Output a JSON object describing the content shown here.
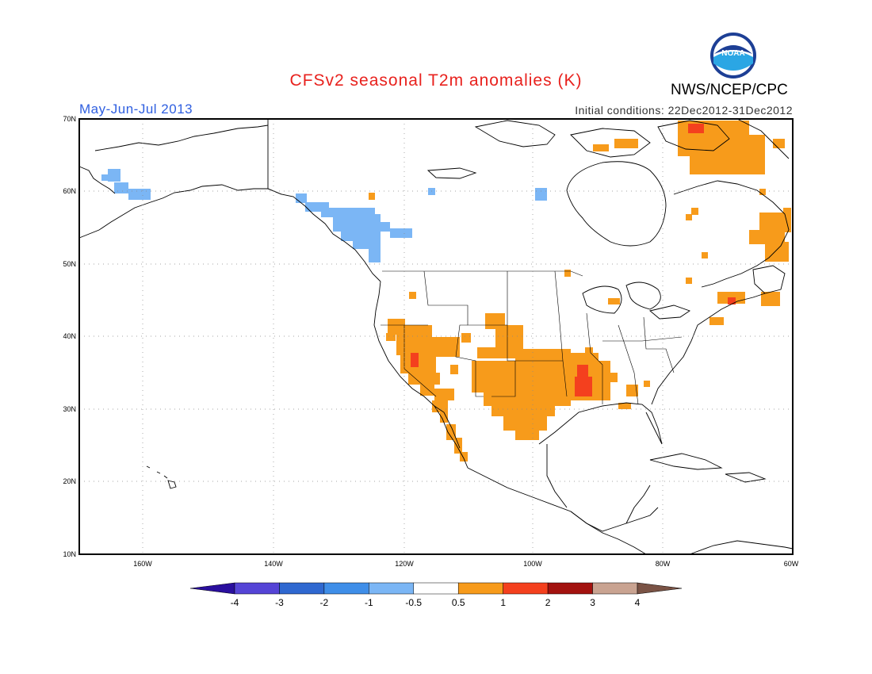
{
  "header": {
    "title": "CFSv2 seasonal T2m anomalies (K)",
    "period": "May-Jun-Jul 2013",
    "initial_conditions": "Initial conditions: 22Dec2012-31Dec2012",
    "agency": "NWS/NCEP/CPC",
    "logo_text": "NOAA"
  },
  "map": {
    "lat_range": [
      10,
      70
    ],
    "lon_range": [
      -172,
      -60
    ],
    "lat_ticks": [
      "70N",
      "60N",
      "50N",
      "40N",
      "30N",
      "20N",
      "10N"
    ],
    "lon_ticks": [
      "160W",
      "140W",
      "120W",
      "100W",
      "80W",
      "60W"
    ],
    "grid": true,
    "anomaly_regions": [
      {
        "name": "southwest-us-warm",
        "level": "0.5-1",
        "color": "#f79b1b"
      },
      {
        "name": "southern-plains-warm",
        "level": "0.5-1",
        "color": "#f79b1b"
      },
      {
        "name": "lower-mississippi-hot",
        "level": "1-2",
        "color": "#f4401e"
      },
      {
        "name": "northeast-canada-warm",
        "level": "0.5-1",
        "color": "#f79b1b"
      },
      {
        "name": "pacific-northwest-cool",
        "level": "-1 to -0.5",
        "color": "#7bb6f5"
      },
      {
        "name": "alaska-cool",
        "level": "-1 to -0.5",
        "color": "#7bb6f5"
      }
    ]
  },
  "colorbar": {
    "labels": [
      "-4",
      "-3",
      "-2",
      "-1",
      "-0.5",
      "0.5",
      "1",
      "2",
      "3",
      "4"
    ],
    "colors": [
      "#2a0f9e",
      "#5544d6",
      "#2f68d0",
      "#3f8ee8",
      "#7bb6f5",
      "#ffffff",
      "#f79b1b",
      "#f4401e",
      "#a3120f",
      "#c9a391",
      "#7a5345"
    ]
  }
}
